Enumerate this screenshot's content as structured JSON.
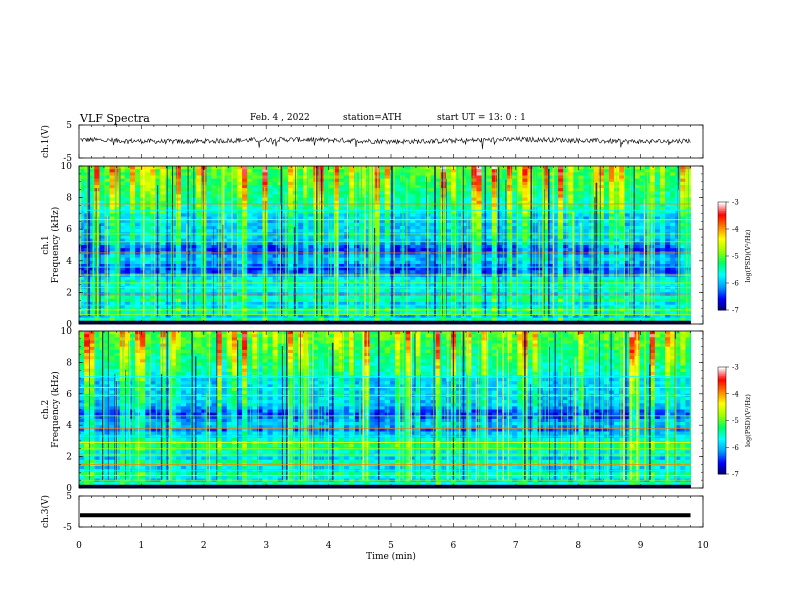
{
  "header": {
    "title": "VLF Spectra",
    "date": "Feb. 4 , 2022",
    "station": "station=ATH",
    "start_label": "start UT =",
    "start_time": "13: 0 : 1"
  },
  "chart_data": [
    {
      "type": "line",
      "panel": "ch1-waveform",
      "ylabel": "ch.1(V)",
      "ylim": [
        -5,
        5
      ],
      "yticks": [
        "5",
        "-5"
      ],
      "xlim": [
        0,
        10
      ],
      "line_color": "#000000",
      "description_values": {
        "baseline_v": 0.3,
        "noise_amplitude_v": 1.5,
        "data_end_min": 9.8
      }
    },
    {
      "type": "heatmap",
      "panel": "ch1-spectrogram",
      "ylabel": "ch.1\nFrequency (kHz)",
      "ylabel_lines": [
        "ch.1",
        "Frequency (kHz)"
      ],
      "ylim": [
        0,
        10
      ],
      "yticks": [
        "0",
        "2",
        "4",
        "6",
        "8",
        "10"
      ],
      "xlim": [
        0,
        10
      ],
      "data_end_min": 9.8,
      "colorbar": {
        "label": "log(PSD)(V²/Hz)",
        "ticks": [
          "-3",
          "-4",
          "-5",
          "-6",
          "-7"
        ],
        "range": [
          -7,
          -3
        ]
      }
    },
    {
      "type": "heatmap",
      "panel": "ch2-spectrogram",
      "ylabel": "ch.2\nFrequency (kHz)",
      "ylabel_lines": [
        "ch.2",
        "Frequency (kHz)"
      ],
      "ylim": [
        0,
        10
      ],
      "yticks": [
        "0",
        "2",
        "4",
        "6",
        "8",
        "10"
      ],
      "xlim": [
        0,
        10
      ],
      "data_end_min": 9.8,
      "colorbar": {
        "label": "log(PSD)(V²/Hz)",
        "ticks": [
          "-3",
          "-4",
          "-5",
          "-6",
          "-7"
        ],
        "range": [
          -7,
          -3
        ]
      }
    },
    {
      "type": "line",
      "panel": "ch3-waveform",
      "ylabel": "ch.3(V)",
      "ylim": [
        -5,
        5
      ],
      "yticks": [
        "5",
        "-5"
      ],
      "xlim": [
        0,
        10
      ],
      "line_color": "#000000",
      "description_values": {
        "level_v": -1.2,
        "data_end_min": 9.8
      }
    }
  ],
  "xaxis": {
    "xlabel": "Time (min)",
    "ticks": [
      "0",
      "1",
      "2",
      "3",
      "4",
      "5",
      "6",
      "7",
      "8",
      "9",
      "10"
    ]
  },
  "colormap": [
    "#000066",
    "#0000ff",
    "#00a0ff",
    "#00ffff",
    "#00ff60",
    "#a0ff00",
    "#ffff00",
    "#ff8000",
    "#ff0000",
    "#ffffff"
  ]
}
